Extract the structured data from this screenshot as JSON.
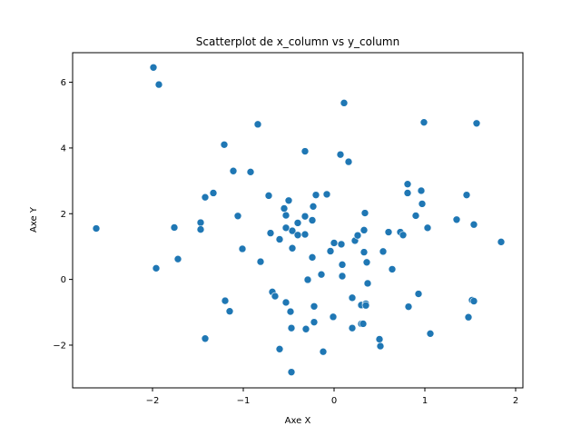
{
  "chart_data": {
    "type": "scatter",
    "title": "Scatterplot de x_column vs y_column",
    "xlabel": "Axe X",
    "ylabel": "Axe Y",
    "xlim": [
      -2.88,
      2.08
    ],
    "ylim": [
      -3.3,
      6.9
    ],
    "xticks": [
      -2,
      -1,
      0,
      1,
      2
    ],
    "yticks": [
      -2,
      0,
      2,
      4,
      6
    ],
    "xtick_labels": [
      "−2",
      "−1",
      "0",
      "1",
      "2"
    ],
    "ytick_labels": [
      "−2",
      "0",
      "2",
      "4",
      "6"
    ],
    "grid": false,
    "marker_color": "#1f77b4",
    "points": [
      [
        -2.62,
        1.55
      ],
      [
        -1.99,
        6.45
      ],
      [
        -1.93,
        5.93
      ],
      [
        -1.96,
        0.34
      ],
      [
        -1.76,
        1.58
      ],
      [
        -1.72,
        0.62
      ],
      [
        -1.47,
        1.73
      ],
      [
        -1.47,
        1.52
      ],
      [
        -1.42,
        2.5
      ],
      [
        -1.42,
        -1.8
      ],
      [
        -1.33,
        2.63
      ],
      [
        -1.21,
        4.1
      ],
      [
        -1.2,
        -0.65
      ],
      [
        -1.15,
        -0.97
      ],
      [
        -1.11,
        3.3
      ],
      [
        -1.06,
        1.93
      ],
      [
        -1.01,
        0.93
      ],
      [
        -0.92,
        3.27
      ],
      [
        -0.84,
        4.72
      ],
      [
        -0.81,
        0.54
      ],
      [
        -0.72,
        2.55
      ],
      [
        -0.7,
        1.41
      ],
      [
        -0.68,
        -0.38
      ],
      [
        -0.65,
        -0.51
      ],
      [
        -0.6,
        1.22
      ],
      [
        -0.6,
        -2.12
      ],
      [
        -0.55,
        2.16
      ],
      [
        -0.53,
        1.57
      ],
      [
        -0.53,
        1.95
      ],
      [
        -0.53,
        -0.7
      ],
      [
        -0.5,
        2.4
      ],
      [
        -0.48,
        -0.98
      ],
      [
        -0.47,
        -1.48
      ],
      [
        -0.47,
        -2.82
      ],
      [
        -0.46,
        0.95
      ],
      [
        -0.46,
        1.48
      ],
      [
        -0.4,
        1.72
      ],
      [
        -0.4,
        1.35
      ],
      [
        -0.32,
        1.37
      ],
      [
        -0.32,
        1.92
      ],
      [
        -0.32,
        3.9
      ],
      [
        -0.31,
        -1.51
      ],
      [
        -0.29,
        -0.01
      ],
      [
        -0.24,
        1.8
      ],
      [
        -0.24,
        0.67
      ],
      [
        -0.23,
        2.22
      ],
      [
        -0.22,
        -0.82
      ],
      [
        -0.22,
        -1.3
      ],
      [
        -0.2,
        2.57
      ],
      [
        -0.14,
        0.15
      ],
      [
        -0.12,
        -2.2
      ],
      [
        -0.08,
        2.59
      ],
      [
        -0.04,
        0.86
      ],
      [
        -0.01,
        -1.14
      ],
      [
        0.0,
        1.11
      ],
      [
        0.07,
        3.8
      ],
      [
        0.08,
        1.07
      ],
      [
        0.09,
        0.45
      ],
      [
        0.09,
        0.1
      ],
      [
        0.11,
        5.37
      ],
      [
        0.16,
        3.58
      ],
      [
        0.2,
        -0.56
      ],
      [
        0.2,
        -1.48
      ],
      [
        0.23,
        1.18
      ],
      [
        0.26,
        1.34
      ],
      [
        0.3,
        -0.78
      ],
      [
        0.3,
        -1.35
      ],
      [
        0.32,
        -1.35
      ],
      [
        0.33,
        1.5
      ],
      [
        0.33,
        0.83
      ],
      [
        0.34,
        2.02
      ],
      [
        0.35,
        -0.74
      ],
      [
        0.35,
        -0.79
      ],
      [
        0.36,
        0.52
      ],
      [
        0.37,
        -0.12
      ],
      [
        0.5,
        -1.82
      ],
      [
        0.51,
        -2.03
      ],
      [
        0.54,
        0.85
      ],
      [
        0.6,
        1.44
      ],
      [
        0.64,
        0.31
      ],
      [
        0.73,
        1.44
      ],
      [
        0.76,
        1.35
      ],
      [
        0.81,
        2.9
      ],
      [
        0.81,
        2.63
      ],
      [
        0.82,
        -0.83
      ],
      [
        0.9,
        1.94
      ],
      [
        0.93,
        -0.44
      ],
      [
        0.96,
        2.7
      ],
      [
        0.97,
        2.3
      ],
      [
        0.99,
        4.78
      ],
      [
        1.03,
        1.57
      ],
      [
        1.06,
        -1.65
      ],
      [
        1.35,
        1.82
      ],
      [
        1.46,
        2.57
      ],
      [
        1.48,
        -1.15
      ],
      [
        1.52,
        -0.63
      ],
      [
        1.54,
        -0.66
      ],
      [
        1.54,
        1.67
      ],
      [
        1.57,
        4.75
      ],
      [
        1.84,
        1.14
      ]
    ]
  }
}
